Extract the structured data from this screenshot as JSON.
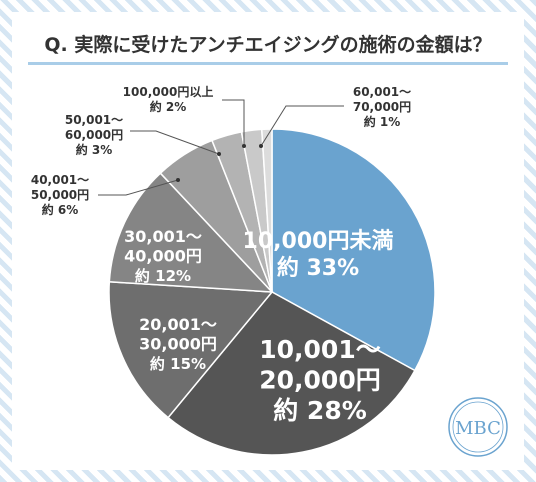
{
  "title": "Q. 実際に受けたアンチエイジングの施術の金額は？",
  "logo_text": "MBC",
  "colors": {
    "accent_blue": "#6aa3cf",
    "title_underline": "#a9cde8",
    "stripe": "#d6e6f3"
  },
  "chart_data": {
    "type": "pie",
    "title": "Q. 実際に受けたアンチエイジングの施術の金額は？",
    "start": "12 o'clock, clockwise",
    "slices": [
      {
        "label_lines": [
          "10,000円未満",
          "約 33%"
        ],
        "value": 33,
        "color": "#6aa3cf"
      },
      {
        "label_lines": [
          "10,001～",
          "20,000円",
          "約 28%"
        ],
        "value": 28,
        "color": "#555555"
      },
      {
        "label_lines": [
          "20,001～",
          "30,000円",
          "約 15%"
        ],
        "value": 15,
        "color": "#6e6e6e"
      },
      {
        "label_lines": [
          "30,001～",
          "40,000円",
          "約 12%"
        ],
        "value": 12,
        "color": "#858585"
      },
      {
        "label_lines": [
          "40,001～",
          "50,000円",
          "約 6%"
        ],
        "value": 6,
        "color": "#9e9e9e"
      },
      {
        "label_lines": [
          "50,001～",
          "60,000円",
          "約 3%"
        ],
        "value": 3,
        "color": "#b3b3b3"
      },
      {
        "label_lines": [
          "100,000円以上",
          "約 2%"
        ],
        "value": 2,
        "color": "#c9c9c9"
      },
      {
        "label_lines": [
          "60,001～",
          "70,000円",
          "約 1%"
        ],
        "value": 1,
        "color": "#dcdcdc"
      }
    ]
  }
}
